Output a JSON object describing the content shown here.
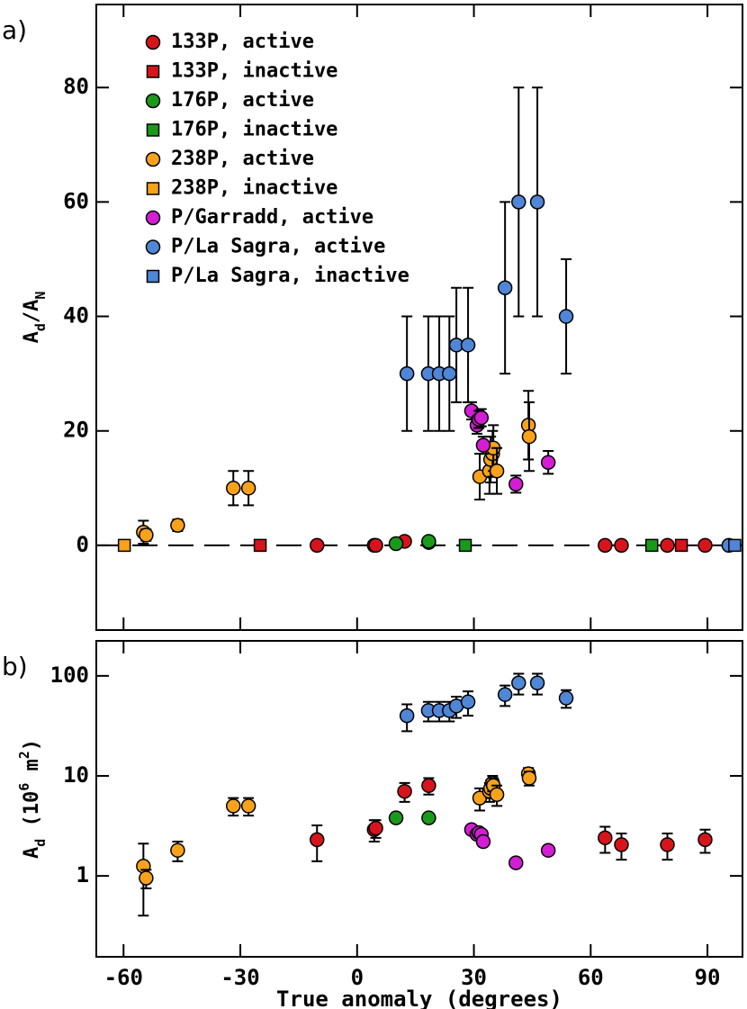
{
  "chart_data": [
    {
      "type": "scatter",
      "panel_label": "a)",
      "ylabel": [
        {
          "text": "A"
        },
        {
          "text": "d",
          "sub": true
        },
        {
          "text": "/A"
        },
        {
          "text": "N",
          "sub": true
        }
      ],
      "xlim": [
        -67,
        99
      ],
      "ylim": [
        -14.8,
        94.5
      ],
      "xticks": [
        -60,
        -30,
        0,
        30,
        60,
        90
      ],
      "yticks": [
        0,
        20,
        40,
        60,
        80
      ],
      "hline": 0,
      "legend": "upper left",
      "series": [
        {
          "name": "133P, active",
          "color": "#d7141c",
          "marker": "circle",
          "x": [
            -10.3,
            4.4,
            4.8,
            12.2,
            18.4,
            63.7,
            67.9,
            79.7,
            89.4
          ],
          "values": [
            0,
            0,
            0,
            0.7,
            0.5,
            0,
            0,
            0,
            0
          ]
        },
        {
          "name": "133P, inactive",
          "color": "#d7141c",
          "marker": "square",
          "x": [
            -24.9,
            83.3
          ],
          "values": [
            0,
            0
          ]
        },
        {
          "name": "176P, active",
          "color": "#1a9a1a",
          "marker": "circle",
          "x": [
            10,
            18.4
          ],
          "values": [
            0.3,
            0.7
          ]
        },
        {
          "name": "176P, inactive",
          "color": "#1a9a1a",
          "marker": "square",
          "x": [
            27.8,
            75.7
          ],
          "values": [
            0,
            0
          ]
        },
        {
          "name": "238P, active",
          "color": "#f7a21b",
          "marker": "circle",
          "x": [
            -54.9,
            -54.2,
            -46.1,
            -31.8,
            -27.9,
            31.5,
            34,
            34.3,
            34.8,
            35,
            35.9,
            44,
            44.2
          ],
          "values": [
            2.3,
            1.8,
            3.5,
            10,
            10,
            12,
            13,
            15,
            16,
            17,
            13,
            21,
            19
          ],
          "errors": [
            2,
            1,
            1,
            3,
            3,
            4,
            4,
            4,
            4,
            4,
            4,
            6,
            6
          ]
        },
        {
          "name": "238P, inactive",
          "color": "#f7a21b",
          "marker": "square",
          "x": [
            -59.8
          ],
          "values": [
            0
          ]
        },
        {
          "name": "P/Garradd, active",
          "color": "#d41dd4",
          "marker": "circle",
          "x": [
            29.4,
            30.8,
            31.3,
            31.9,
            32.4,
            40.8,
            49.1
          ],
          "values": [
            23.5,
            21,
            22,
            22.3,
            17.5,
            10.7,
            14.5
          ],
          "errors": [
            1.5,
            1.5,
            1.5,
            1.5,
            1.5,
            1.5,
            2
          ]
        },
        {
          "name": "P/La Sagra, active",
          "color": "#4f86d6",
          "marker": "circle",
          "x": [
            12.8,
            18.3,
            21.1,
            23.7,
            25.5,
            28.5,
            38,
            41.5,
            46.3,
            53.7,
            95.5
          ],
          "values": [
            30,
            30,
            30,
            30,
            35,
            35,
            45,
            60,
            60,
            40,
            0
          ],
          "errors": [
            10,
            10,
            10,
            10,
            10,
            10,
            15,
            20,
            20,
            10,
            null
          ]
        },
        {
          "name": "P/La Sagra, inactive",
          "color": "#4f86d6",
          "marker": "square",
          "x": [
            97
          ],
          "values": [
            0
          ]
        }
      ]
    },
    {
      "type": "scatter",
      "panel_label": "b)",
      "xlabel": "True anomaly (degrees)",
      "ylabel": [
        {
          "text": "A"
        },
        {
          "text": "d",
          "sub": true
        },
        {
          "text": " (10"
        },
        {
          "text": "6",
          "sup": true
        },
        {
          "text": " m"
        },
        {
          "text": "2",
          "sup": true
        },
        {
          "text": ")"
        }
      ],
      "xlim": [
        -67,
        99
      ],
      "ylim": [
        0.155,
        224
      ],
      "log_y": true,
      "xticks": [
        -60,
        -30,
        0,
        30,
        60,
        90
      ],
      "yticks": [
        1,
        10,
        100
      ],
      "series": [
        {
          "color": "#d7141c",
          "marker": "circle",
          "x": [
            -10.3,
            4.4,
            4.8,
            12.2,
            18.4,
            63.7,
            67.9,
            79.7,
            89.4
          ],
          "values": [
            2.3,
            2.9,
            3.0,
            7,
            8,
            2.4,
            2.05,
            2.05,
            2.3
          ],
          "errors": [
            0.9,
            0.7,
            0.6,
            1.5,
            1.5,
            0.7,
            0.6,
            0.6,
            0.6
          ]
        },
        {
          "color": "#1a9a1a",
          "marker": "circle",
          "x": [
            10,
            18.4
          ],
          "values": [
            3.8,
            3.8
          ]
        },
        {
          "color": "#f7a21b",
          "marker": "circle",
          "x": [
            -54.9,
            -54.2,
            -46.1,
            -31.8,
            -27.9,
            31.5,
            34,
            34.3,
            34.8,
            35,
            35.9,
            44,
            44.2
          ],
          "values": [
            1.25,
            0.95,
            1.8,
            5,
            5,
            6,
            7,
            7.5,
            8.5,
            8,
            6.5,
            10.5,
            9.5
          ],
          "errors": [
            0.85,
            0.2,
            0.4,
            1,
            1,
            1.5,
            1.5,
            1.5,
            1.5,
            1.5,
            1.5,
            1.5,
            1.5
          ]
        },
        {
          "color": "#d41dd4",
          "marker": "circle",
          "x": [
            29.4,
            30.8,
            31.3,
            31.9,
            32.4,
            40.8,
            49.1
          ],
          "values": [
            2.9,
            2.6,
            2.7,
            2.6,
            2.2,
            1.35,
            1.8
          ]
        },
        {
          "color": "#4f86d6",
          "marker": "circle",
          "x": [
            12.8,
            18.3,
            21.1,
            23.7,
            25.5,
            28.5,
            38,
            41.5,
            46.3,
            53.7
          ],
          "values": [
            40,
            45,
            45,
            45,
            50,
            55,
            65,
            85,
            85,
            60
          ],
          "errors": [
            12,
            10,
            10,
            10,
            12,
            15,
            15,
            20,
            20,
            12
          ]
        }
      ]
    }
  ]
}
